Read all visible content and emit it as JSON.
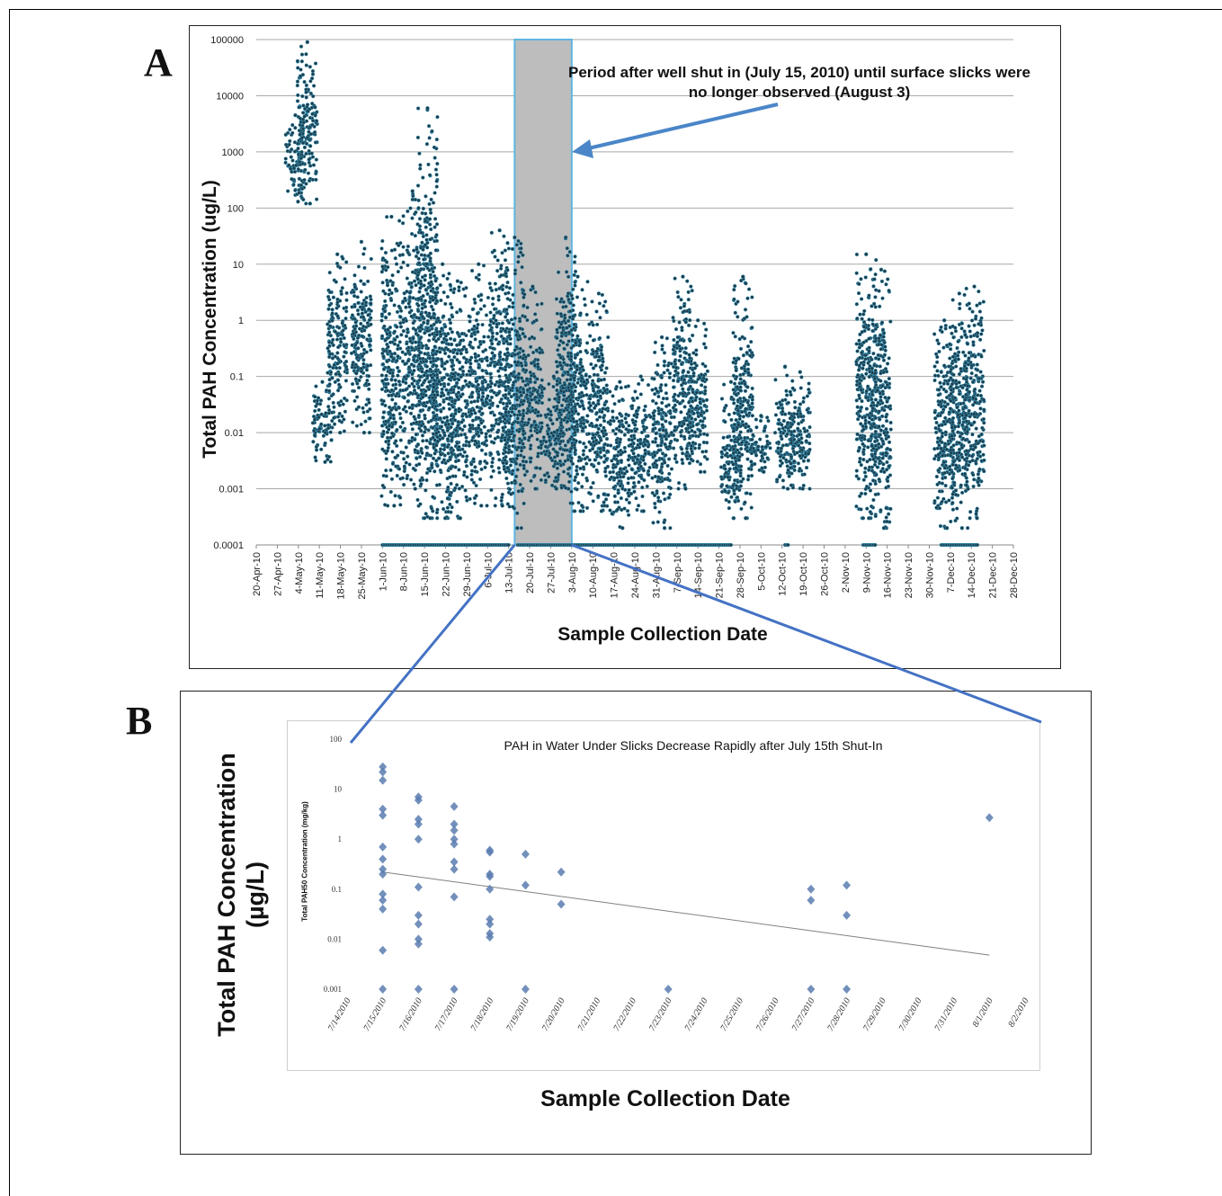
{
  "panel_labels": {
    "a": "A",
    "b": "B"
  },
  "panel_a": {
    "ylabel": "Total PAH Concentration (ug/L)",
    "xlabel": "Sample Collection Date",
    "annotation": "Period after well shut in (July 15, 2010) until surface slicks were no longer observed (August 3)",
    "y_ticks": [
      "100000",
      "10000",
      "1000",
      "100",
      "10",
      "1",
      "0.1",
      "0.01",
      "0.001",
      "0.0001"
    ],
    "x_ticks": [
      "20-Apr-10",
      "27-Apr-10",
      "4-May-10",
      "11-May-10",
      "18-May-10",
      "25-May-10",
      "1-Jun-10",
      "8-Jun-10",
      "15-Jun-10",
      "22-Jun-10",
      "29-Jun-10",
      "6-Jul-10",
      "13-Jul-10",
      "20-Jul-10",
      "27-Jul-10",
      "3-Aug-10",
      "10-Aug-10",
      "17-Aug-10",
      "24-Aug-10",
      "31-Aug-10",
      "7-Sep-10",
      "14-Sep-10",
      "21-Sep-10",
      "28-Sep-10",
      "5-Oct-10",
      "12-Oct-10",
      "19-Oct-10",
      "26-Oct-10",
      "2-Nov-10",
      "9-Nov-10",
      "16-Nov-10",
      "23-Nov-10",
      "30-Nov-10",
      "7-Dec-10",
      "14-Dec-10",
      "21-Dec-10",
      "28-Dec-10"
    ],
    "colors": {
      "marker": "#1f3d4a",
      "marker_edge": "#3aa0c8",
      "shade": "#bdbdbd",
      "shade_border": "#5fb4e0",
      "arrow": "#4a86c8"
    }
  },
  "panel_b": {
    "title": "PAH in Water Under Slicks Decrease Rapidly after July 15th Shut-In",
    "ylabel_small": "Total PAH50 Concentration (mg/kg)",
    "ylabel_line1": "Total PAH Concentration",
    "ylabel_line2": "(µg/L)",
    "xlabel": "Sample Collection Date",
    "y_ticks": [
      "100",
      "10",
      "1",
      "0.1",
      "0.01",
      "0.001"
    ],
    "x_ticks": [
      "7/14/2010",
      "7/15/2010",
      "7/16/2010",
      "7/17/2010",
      "7/18/2010",
      "7/19/2010",
      "7/20/2010",
      "7/21/2010",
      "7/22/2010",
      "7/23/2010",
      "7/24/2010",
      "7/25/2010",
      "7/26/2010",
      "7/27/2010",
      "7/28/2010",
      "7/29/2010",
      "7/30/2010",
      "7/31/2010",
      "8/1/2010",
      "8/2/2010"
    ],
    "colors": {
      "marker": "#5a7db0",
      "trend": "#808080",
      "connector": "#4472c4"
    }
  },
  "chart_data": [
    {
      "type": "scatter",
      "panel": "A",
      "title": "",
      "xlabel": "Sample Collection Date",
      "ylabel": "Total PAH Concentration (ug/L)",
      "y_scale": "log",
      "ylim": [
        0.0001,
        100000
      ],
      "xlim": [
        "2010-04-20",
        "2010-12-28"
      ],
      "grid": true,
      "shaded_period": [
        "2010-07-15",
        "2010-08-03"
      ],
      "annotation": "Period after well shut in (July 15, 2010) until surface slicks were no longer observed (August 3)",
      "clusters": [
        {
          "date": "2010-05-03",
          "range": [
            130,
            4500
          ]
        },
        {
          "date": "2010-05-07",
          "range": [
            120,
            90000
          ]
        },
        {
          "date": "2010-05-12",
          "range": [
            0.003,
            0.08
          ]
        },
        {
          "date": "2010-05-17",
          "range": [
            0.01,
            15
          ]
        },
        {
          "date": "2010-05-25",
          "range": [
            0.01,
            25
          ]
        },
        {
          "date": "2010-06-04",
          "range": [
            0.0005,
            70
          ]
        },
        {
          "date": "2010-06-11",
          "range": [
            0.001,
            200
          ]
        },
        {
          "date": "2010-06-16",
          "range": [
            0.0003,
            6000
          ]
        },
        {
          "date": "2010-06-21",
          "range": [
            0.0003,
            10
          ]
        },
        {
          "date": "2010-06-26",
          "range": [
            0.0003,
            5
          ]
        },
        {
          "date": "2010-07-03",
          "range": [
            0.0005,
            10
          ]
        },
        {
          "date": "2010-07-10",
          "range": [
            0.0005,
            40
          ]
        },
        {
          "date": "2010-07-15",
          "range": [
            0.0002,
            30
          ]
        },
        {
          "date": "2010-07-21",
          "range": [
            0.001,
            4
          ]
        },
        {
          "date": "2010-07-28",
          "range": [
            0.001,
            0.1
          ]
        },
        {
          "date": "2010-08-01",
          "range": [
            0.001,
            30
          ]
        },
        {
          "date": "2010-08-05",
          "range": [
            0.0004,
            6
          ]
        },
        {
          "date": "2010-08-12",
          "range": [
            0.0004,
            3
          ]
        },
        {
          "date": "2010-08-19",
          "range": [
            0.0002,
            0.08
          ]
        },
        {
          "date": "2010-08-26",
          "range": [
            0.0004,
            0.1
          ]
        },
        {
          "date": "2010-09-02",
          "range": [
            0.0002,
            0.5
          ]
        },
        {
          "date": "2010-09-09",
          "range": [
            0.001,
            6
          ]
        },
        {
          "date": "2010-09-14",
          "range": [
            0.002,
            1
          ]
        },
        {
          "date": "2010-09-25",
          "range": [
            0.0003,
            0.08
          ]
        },
        {
          "date": "2010-09-29",
          "range": [
            0.0003,
            6
          ]
        },
        {
          "date": "2010-10-05",
          "range": [
            0.002,
            0.02
          ]
        },
        {
          "date": "2010-10-13",
          "range": [
            0.001,
            0.15
          ]
        },
        {
          "date": "2010-10-18",
          "range": [
            0.001,
            0.12
          ]
        },
        {
          "date": "2010-11-09",
          "range": [
            0.0003,
            15
          ]
        },
        {
          "date": "2010-11-14",
          "range": [
            0.0002,
            8
          ]
        },
        {
          "date": "2010-12-05",
          "range": [
            0.0002,
            1
          ]
        },
        {
          "date": "2010-12-10",
          "range": [
            0.0002,
            3
          ]
        },
        {
          "date": "2010-12-15",
          "range": [
            0.0003,
            4
          ]
        }
      ],
      "detection_limit_points": {
        "y": 0.0001,
        "date_ranges": [
          [
            "2010-06-01",
            "2010-07-13"
          ],
          [
            "2010-07-16",
            "2010-09-25"
          ],
          [
            "2010-10-13",
            "2010-10-14"
          ],
          [
            "2010-11-08",
            "2010-11-12"
          ],
          [
            "2010-12-04",
            "2010-12-16"
          ]
        ]
      }
    },
    {
      "type": "scatter",
      "panel": "B",
      "title": "PAH in Water Under Slicks Decrease Rapidly after July 15th Shut-In",
      "xlabel": "Sample Collection Date",
      "ylabel": "Total PAH Concentration (µg/L)",
      "y_scale": "log",
      "ylim": [
        0.001,
        100
      ],
      "xlim": [
        "2010-07-14",
        "2010-08-02"
      ],
      "points": [
        {
          "x": "2010-07-15",
          "y": 28
        },
        {
          "x": "2010-07-15",
          "y": 22
        },
        {
          "x": "2010-07-15",
          "y": 15
        },
        {
          "x": "2010-07-15",
          "y": 4
        },
        {
          "x": "2010-07-15",
          "y": 3
        },
        {
          "x": "2010-07-15",
          "y": 0.7
        },
        {
          "x": "2010-07-15",
          "y": 0.4
        },
        {
          "x": "2010-07-15",
          "y": 0.25
        },
        {
          "x": "2010-07-15",
          "y": 0.2
        },
        {
          "x": "2010-07-15",
          "y": 0.08
        },
        {
          "x": "2010-07-15",
          "y": 0.06
        },
        {
          "x": "2010-07-15",
          "y": 0.04
        },
        {
          "x": "2010-07-15",
          "y": 0.006
        },
        {
          "x": "2010-07-15",
          "y": 0.001
        },
        {
          "x": "2010-07-16",
          "y": 7
        },
        {
          "x": "2010-07-16",
          "y": 6
        },
        {
          "x": "2010-07-16",
          "y": 2.5
        },
        {
          "x": "2010-07-16",
          "y": 2
        },
        {
          "x": "2010-07-16",
          "y": 1
        },
        {
          "x": "2010-07-16",
          "y": 0.11
        },
        {
          "x": "2010-07-16",
          "y": 0.03
        },
        {
          "x": "2010-07-16",
          "y": 0.02
        },
        {
          "x": "2010-07-16",
          "y": 0.01
        },
        {
          "x": "2010-07-16",
          "y": 0.008
        },
        {
          "x": "2010-07-16",
          "y": 0.001
        },
        {
          "x": "2010-07-17",
          "y": 4.5
        },
        {
          "x": "2010-07-17",
          "y": 2
        },
        {
          "x": "2010-07-17",
          "y": 1.5
        },
        {
          "x": "2010-07-17",
          "y": 1
        },
        {
          "x": "2010-07-17",
          "y": 0.8
        },
        {
          "x": "2010-07-17",
          "y": 0.35
        },
        {
          "x": "2010-07-17",
          "y": 0.25
        },
        {
          "x": "2010-07-17",
          "y": 0.07
        },
        {
          "x": "2010-07-17",
          "y": 0.001
        },
        {
          "x": "2010-07-18",
          "y": 0.6
        },
        {
          "x": "2010-07-18",
          "y": 0.55
        },
        {
          "x": "2010-07-18",
          "y": 0.2
        },
        {
          "x": "2010-07-18",
          "y": 0.18
        },
        {
          "x": "2010-07-18",
          "y": 0.1
        },
        {
          "x": "2010-07-18",
          "y": 0.025
        },
        {
          "x": "2010-07-18",
          "y": 0.02
        },
        {
          "x": "2010-07-18",
          "y": 0.013
        },
        {
          "x": "2010-07-18",
          "y": 0.011
        },
        {
          "x": "2010-07-19",
          "y": 0.5
        },
        {
          "x": "2010-07-19",
          "y": 0.12
        },
        {
          "x": "2010-07-19",
          "y": 0.001
        },
        {
          "x": "2010-07-20",
          "y": 0.22
        },
        {
          "x": "2010-07-20",
          "y": 0.05
        },
        {
          "x": "2010-07-23",
          "y": 0.001
        },
        {
          "x": "2010-07-27",
          "y": 0.1
        },
        {
          "x": "2010-07-27",
          "y": 0.06
        },
        {
          "x": "2010-07-27",
          "y": 0.001
        },
        {
          "x": "2010-07-28",
          "y": 0.12
        },
        {
          "x": "2010-07-28",
          "y": 0.03
        },
        {
          "x": "2010-07-28",
          "y": 0.001
        },
        {
          "x": "2010-08-01",
          "y": 2.7
        }
      ],
      "trendline": [
        {
          "x": "2010-07-15",
          "y": 0.22
        },
        {
          "x": "2010-08-01",
          "y": 0.0048
        }
      ]
    }
  ]
}
